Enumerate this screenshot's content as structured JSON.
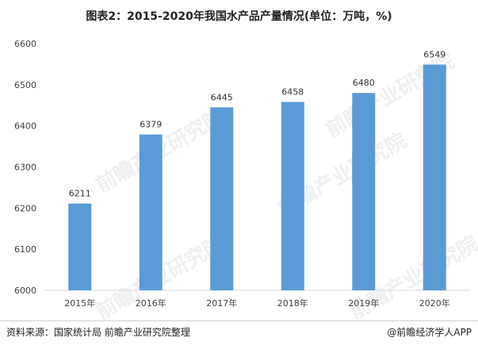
{
  "title": "图表2：2015-2020年我国水产品产量情况(单位：万吨，%)",
  "source": "资料来源：国家统计局 前瞻产业研究院整理",
  "brand": "@前瞻经济学人APP",
  "watermark": "前瞻产业研究院",
  "colors": {
    "bar": "#5b9bd5",
    "axis": "#d9d9d9"
  },
  "chart_data": {
    "type": "bar",
    "categories": [
      "2015年",
      "2016年",
      "2017年",
      "2018年",
      "2019年",
      "2020年"
    ],
    "values": [
      6211,
      6379,
      6445,
      6458,
      6480,
      6549
    ],
    "ylim": [
      6000,
      6600
    ],
    "yticks": [
      6000,
      6100,
      6200,
      6300,
      6400,
      6500,
      6600
    ],
    "grid": false,
    "legend": "none"
  }
}
